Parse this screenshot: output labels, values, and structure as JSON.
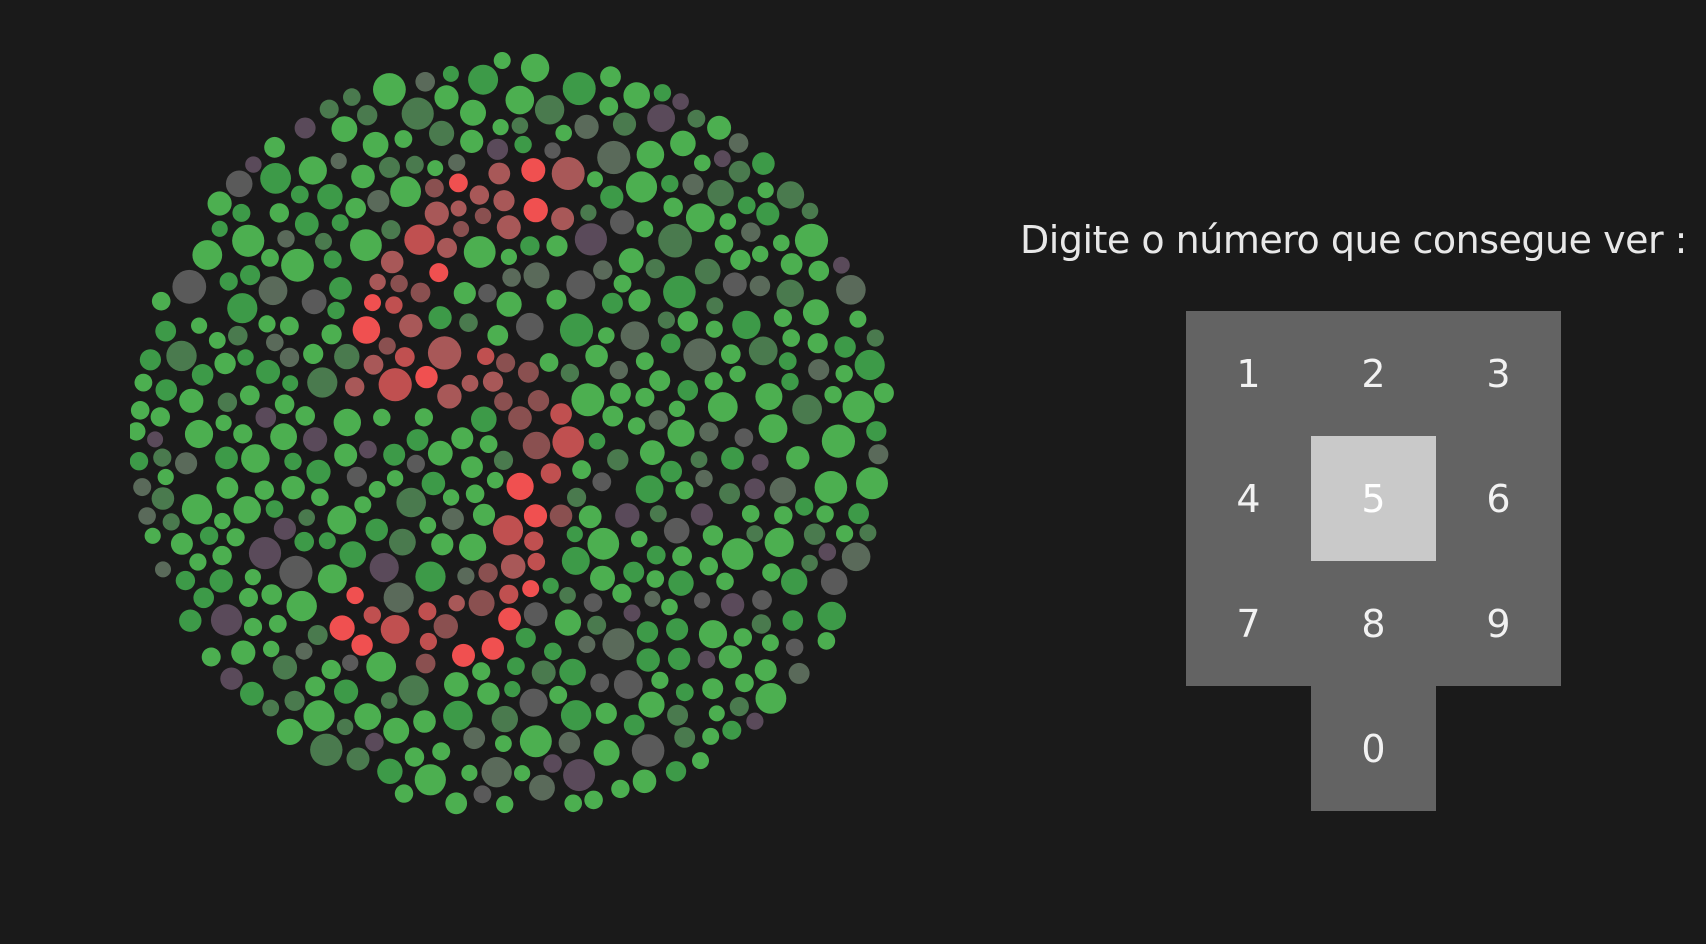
{
  "prompt": "Digite o número que consegue ver :",
  "plate": {
    "type": "ishihara-color-blindness-plate",
    "colors": {
      "background": "#1a1a1a",
      "figure": [
        "#f05050",
        "#c05050",
        "#a85858",
        "#8a5050"
      ],
      "ground": [
        "#4caf50",
        "#3d9a48",
        "#4a7a4e",
        "#5a6a5a",
        "#5a5a5a",
        "#5a4a5a"
      ]
    }
  },
  "keypad": {
    "keys": [
      "1",
      "2",
      "3",
      "4",
      "5",
      "6",
      "7",
      "8",
      "9",
      "0"
    ],
    "selected": "5"
  }
}
